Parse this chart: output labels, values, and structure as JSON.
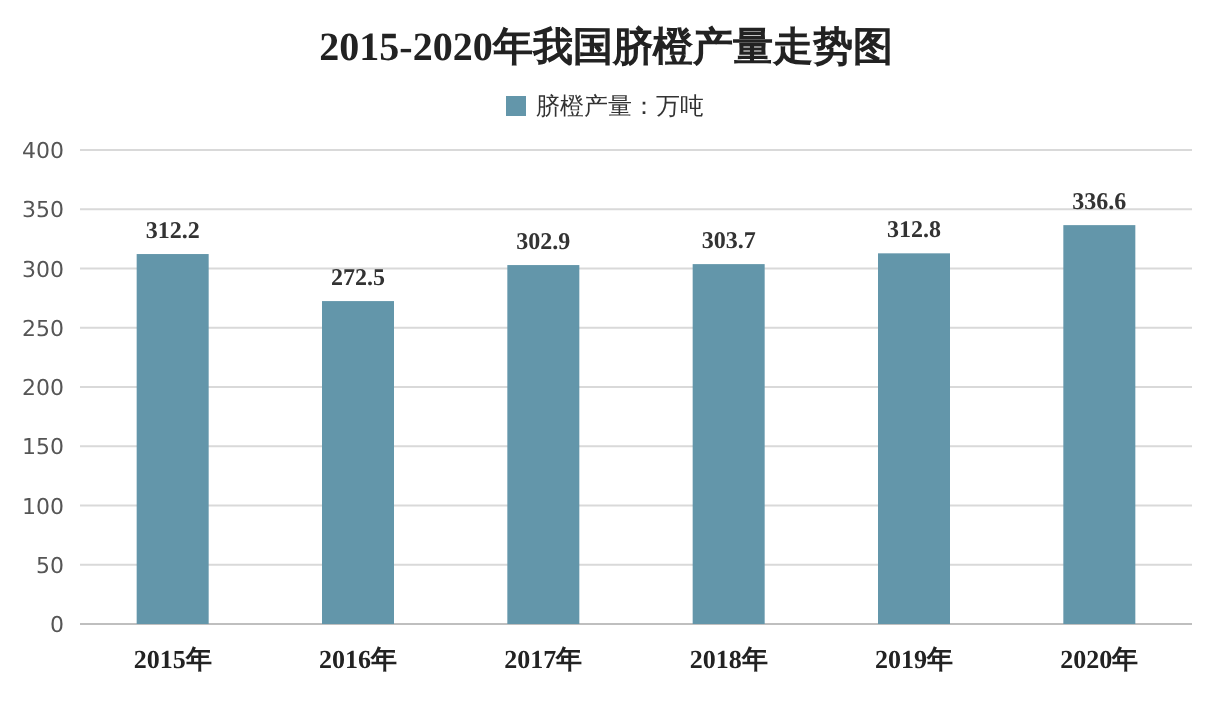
{
  "chart_data": {
    "type": "bar",
    "title": "2015-2020年我国脐橙产量走势图",
    "categories": [
      "2015年",
      "2016年",
      "2017年",
      "2018年",
      "2019年",
      "2020年"
    ],
    "series": [
      {
        "name": "脐橙产量：万吨",
        "color": "#6396aa",
        "values": [
          312.2,
          272.5,
          302.9,
          303.7,
          312.8,
          336.6
        ]
      }
    ],
    "ylim": [
      0,
      400
    ],
    "yticks": [
      0,
      50,
      100,
      150,
      200,
      250,
      300,
      350,
      400
    ],
    "grid": "y",
    "legend": "top",
    "data_labels": true
  }
}
